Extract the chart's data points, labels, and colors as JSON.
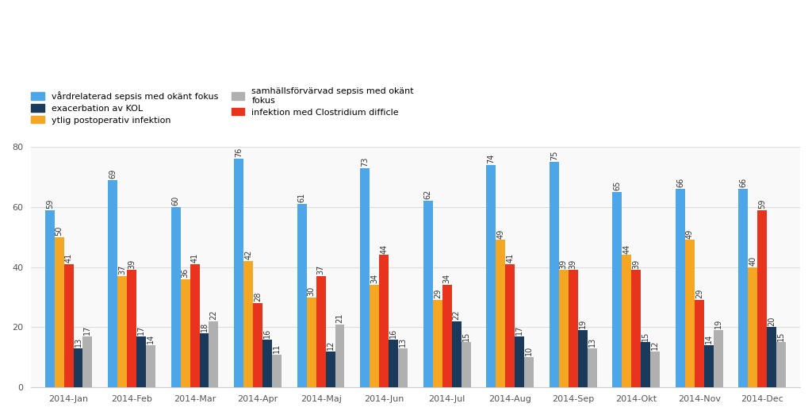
{
  "months": [
    "2014-Jan",
    "2014-Feb",
    "2014-Mar",
    "2014-Apr",
    "2014-Maj",
    "2014-Jun",
    "2014-Jul",
    "2014-Aug",
    "2014-Sep",
    "2014-Okt",
    "2014-Nov",
    "2014-Dec"
  ],
  "series": {
    "vardrelaterad": [
      59,
      69,
      60,
      76,
      61,
      73,
      62,
      74,
      75,
      65,
      66,
      66
    ],
    "ytlig": [
      50,
      37,
      36,
      42,
      30,
      34,
      29,
      49,
      39,
      44,
      49,
      40
    ],
    "infektion": [
      41,
      39,
      41,
      28,
      37,
      44,
      34,
      41,
      39,
      39,
      29,
      59
    ],
    "exacerbation": [
      13,
      17,
      18,
      16,
      12,
      16,
      22,
      17,
      19,
      15,
      14,
      20
    ],
    "samhalls": [
      17,
      14,
      22,
      11,
      21,
      13,
      15,
      10,
      13,
      12,
      19,
      15
    ]
  },
  "colors": {
    "vardrelaterad": "#4da6e8",
    "ytlig": "#f5a623",
    "infektion": "#e8341c",
    "exacerbation": "#1a3a5c",
    "samhalls": "#b0b0b0"
  },
  "legend_labels": {
    "vardrelaterad": "vårdrelaterad sepsis med okänt fokus",
    "ytlig": "ytlig postoperativ infektion",
    "infektion": "infektion med Clostridium difficle",
    "exacerbation": "exacerbation av KOL",
    "samhalls": "samhällsförvärvad sepsis med okänt\nfokus"
  },
  "ylim": [
    0,
    80
  ],
  "yticks": [
    0,
    20,
    40,
    60,
    80
  ],
  "background_color": "#ffffff",
  "panel_color": "#f9f9f9",
  "bar_width": 0.15,
  "fontsize_label": 7,
  "fontsize_legend": 8,
  "fontsize_tick": 8
}
